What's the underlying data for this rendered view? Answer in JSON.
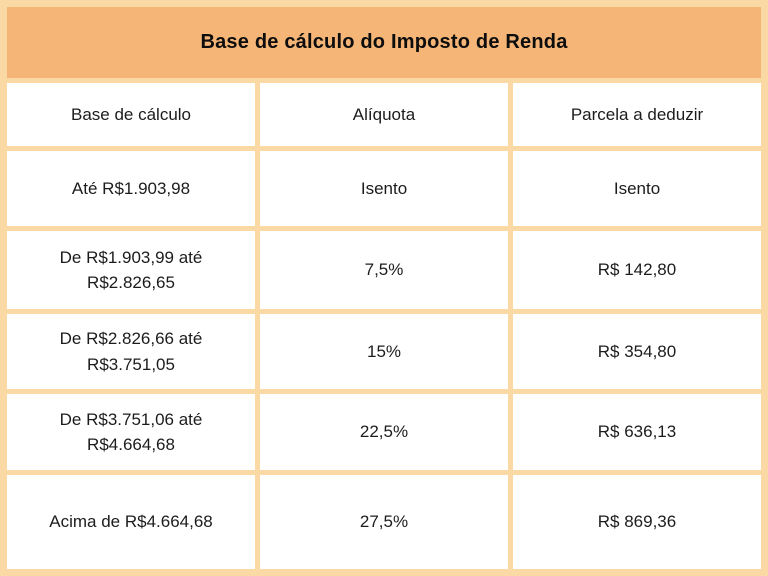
{
  "colors": {
    "border": "#fbd9a4",
    "header_bg": "#f4b577",
    "cell_bg": "#ffffff",
    "text": "#1c1c1c",
    "title_text": "#0d0d0d"
  },
  "chart_data": {
    "type": "table",
    "title": "Base de cálculo do Imposto de Renda",
    "columns": [
      "Base de cálculo",
      "Alíquota",
      "Parcela a deduzir"
    ],
    "rows": [
      [
        "Até R$1.903,98",
        "Isento",
        "Isento"
      ],
      [
        "De R$1.903,99 até R$2.826,65",
        "7,5%",
        "R$ 142,80"
      ],
      [
        "De R$2.826,66 até R$3.751,05",
        "15%",
        "R$ 354,80"
      ],
      [
        "De R$3.751,06 até R$4.664,68",
        "22,5%",
        "R$ 636,13"
      ],
      [
        "Acima de R$4.664,68",
        "27,5%",
        "R$ 869,36"
      ]
    ]
  }
}
